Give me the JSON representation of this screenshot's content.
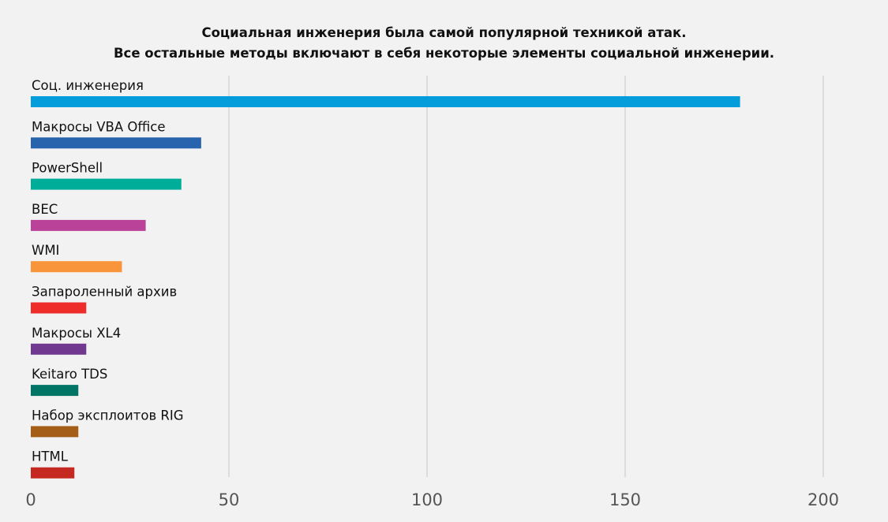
{
  "chart_data": {
    "type": "bar",
    "orientation": "horizontal",
    "title": [
      "Социальная инженерия была самой популярной техникой атак.",
      "Все остальные методы включают в себя некоторые элементы социальной инженерии."
    ],
    "xlabel": "",
    "ylabel": "",
    "xlim": [
      0,
      200
    ],
    "xticks": [
      "0",
      "50",
      "100",
      "150",
      "200"
    ],
    "grid": "vertical",
    "categories": [
      "Соц. инженерия",
      "Макросы VBA Office",
      "PowerShell",
      "BEC",
      "WMI",
      "Запароленный архив",
      "Макросы XL4",
      "Keitaro TDS",
      "Набор эксплоитов RIG",
      "HTML"
    ],
    "values": [
      179,
      43,
      38,
      29,
      23,
      14,
      14,
      12,
      12,
      11
    ],
    "colors": [
      "#039ddc",
      "#2864ad",
      "#00ad99",
      "#ba4399",
      "#f8953a",
      "#ee2d2b",
      "#70398f",
      "#007566",
      "#a55e17",
      "#c52820"
    ]
  }
}
